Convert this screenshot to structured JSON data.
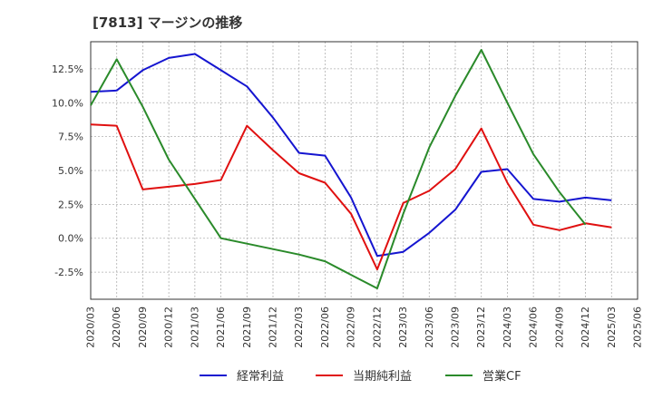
{
  "chart_data": {
    "type": "line",
    "title": "[7813]  マージンの推移",
    "x": [
      "2020/03",
      "2020/06",
      "2020/09",
      "2020/12",
      "2021/03",
      "2021/06",
      "2021/09",
      "2021/12",
      "2022/03",
      "2022/06",
      "2022/09",
      "2022/12",
      "2023/03",
      "2023/06",
      "2023/09",
      "2023/12",
      "2024/03",
      "2024/06",
      "2024/09",
      "2024/12",
      "2025/03",
      "2025/06"
    ],
    "ylim": [
      -4.5,
      14.5
    ],
    "yticks": [
      -2.5,
      0.0,
      2.5,
      5.0,
      7.5,
      10.0,
      12.5
    ],
    "ytick_labels": [
      "-2.5%",
      "0.0%",
      "2.5%",
      "5.0%",
      "7.5%",
      "10.0%",
      "12.5%"
    ],
    "grid": true,
    "legend_position": "bottom",
    "series": [
      {
        "name": "経常利益",
        "color": "#1515d0",
        "values": [
          10.8,
          10.9,
          12.4,
          13.3,
          13.6,
          12.4,
          11.2,
          8.9,
          6.3,
          6.1,
          3.0,
          -1.3,
          -1.0,
          0.4,
          2.1,
          4.9,
          5.1,
          2.9,
          2.7,
          3.0,
          2.8,
          null
        ]
      },
      {
        "name": "当期純利益",
        "color": "#e01010",
        "values": [
          8.4,
          8.3,
          3.6,
          3.8,
          4.0,
          4.3,
          8.3,
          6.5,
          4.8,
          4.1,
          1.8,
          -2.3,
          2.6,
          3.5,
          5.1,
          8.1,
          4.1,
          1.0,
          0.6,
          1.1,
          0.8,
          null
        ]
      },
      {
        "name": "営業CF",
        "color": "#2a8a2a",
        "values": [
          9.8,
          13.2,
          9.7,
          5.8,
          2.9,
          0.0,
          -0.4,
          -0.8,
          -1.2,
          -1.7,
          -2.7,
          -3.7,
          1.8,
          6.7,
          10.5,
          13.9,
          10.0,
          6.2,
          3.4,
          1.0,
          null,
          null
        ]
      }
    ]
  }
}
